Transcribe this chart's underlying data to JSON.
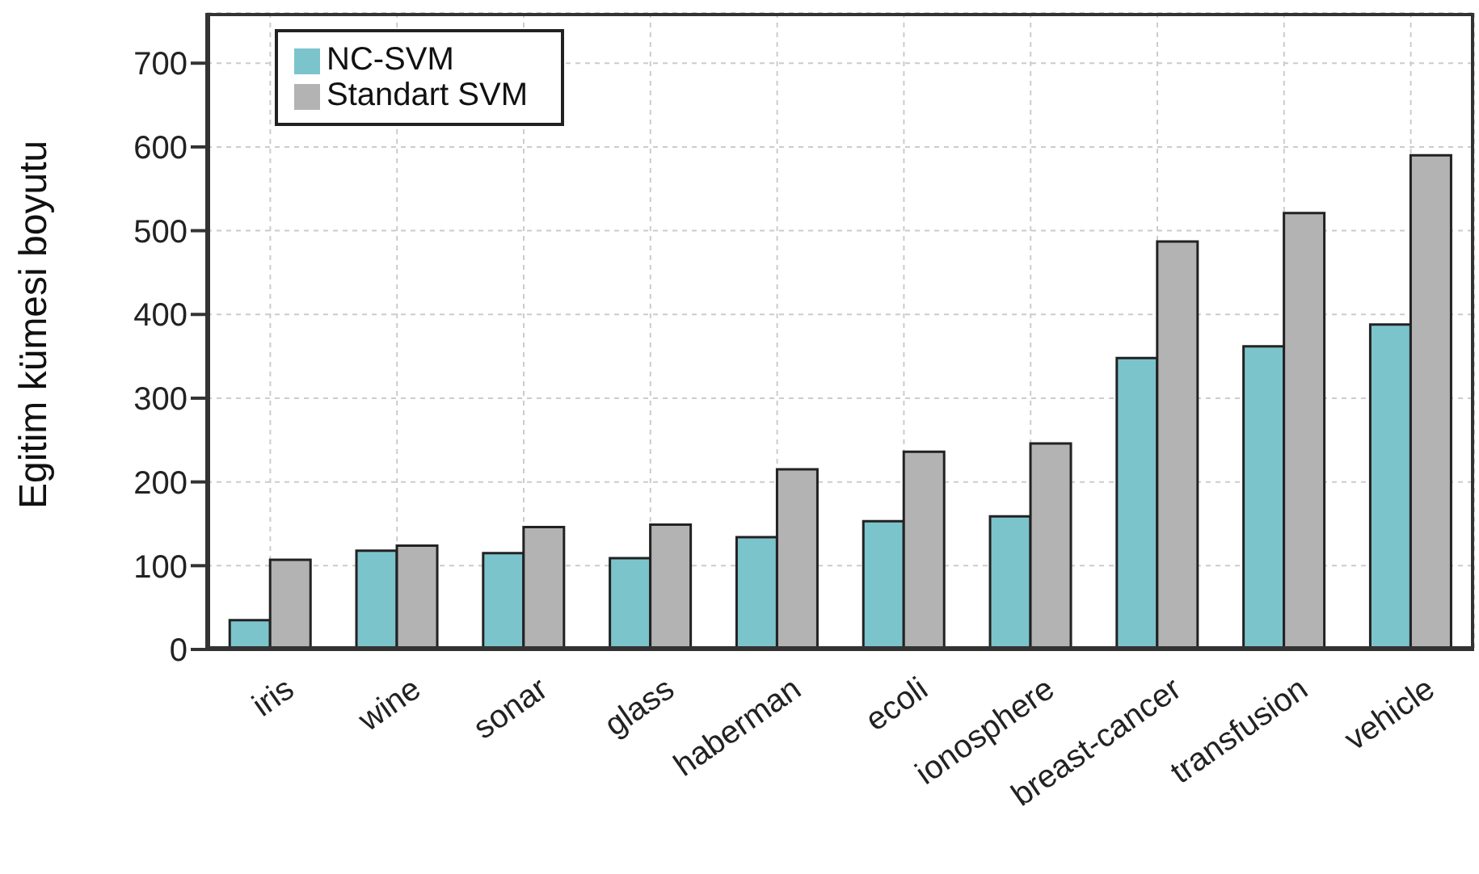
{
  "chart_data": {
    "type": "bar",
    "ylabel": "Egitim kümesi boyutu",
    "categories": [
      "iris",
      "wine",
      "sonar",
      "glass",
      "haberman",
      "ecoli",
      "ionosphere",
      "breast-cancer",
      "transfusion",
      "vehicle"
    ],
    "series": [
      {
        "name": "NC-SVM",
        "color": "#7cc4cc",
        "values": [
          35,
          118,
          115,
          109,
          134,
          153,
          159,
          348,
          362,
          388
        ]
      },
      {
        "name": "Standart SVM",
        "color": "#b3b3b3",
        "values": [
          107,
          124,
          146,
          149,
          215,
          236,
          246,
          487,
          521,
          590
        ]
      }
    ],
    "ylim": [
      0,
      760
    ],
    "yticks": [
      0,
      100,
      200,
      300,
      400,
      500,
      600,
      700
    ],
    "grid": true,
    "legend": "top left"
  }
}
